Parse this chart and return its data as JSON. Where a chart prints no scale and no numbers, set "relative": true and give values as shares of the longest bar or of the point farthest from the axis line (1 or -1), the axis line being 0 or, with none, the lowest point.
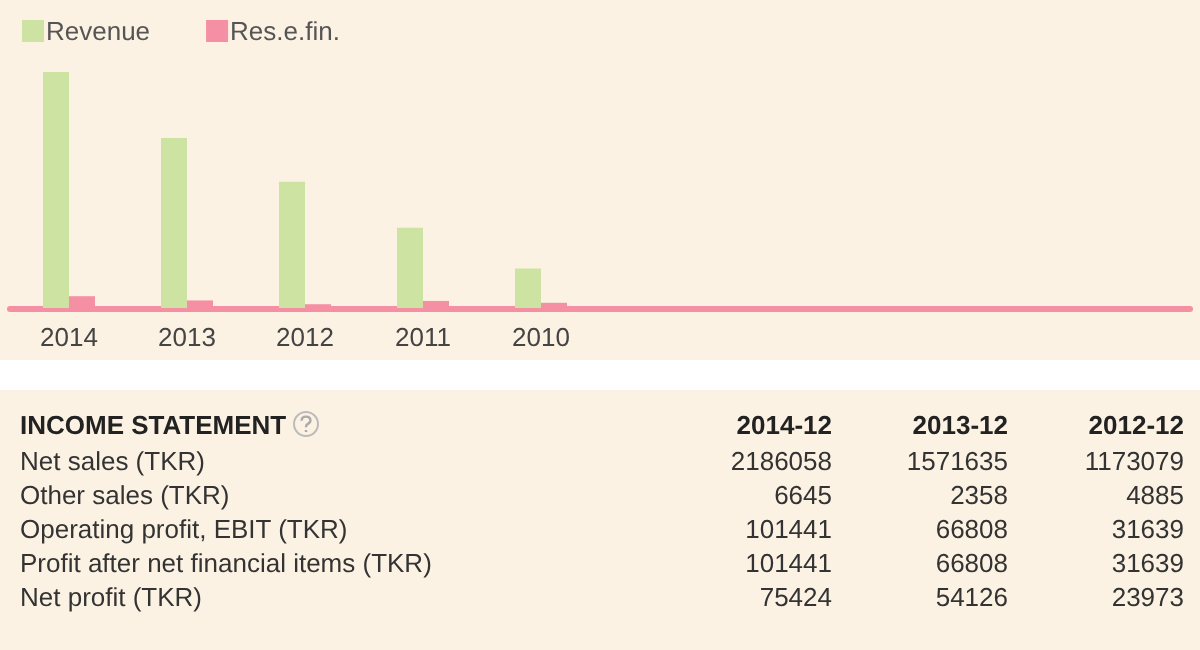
{
  "chart_data": [
    {
      "type": "bar",
      "relative": true,
      "legend": "top left",
      "categories": [
        "2014",
        "2013",
        "2012",
        "2011",
        "2010",
        null,
        null,
        null,
        null,
        null
      ],
      "series": [
        {
          "name": "Revenue",
          "color": "#cce3a1",
          "values": [
            1,
            0.72,
            0.535,
            0.34,
            0.167,
            null,
            null,
            null,
            null,
            null
          ]
        },
        {
          "name": "Res.e.fin.",
          "color": "#f58fa4",
          "values": [
            0.05,
            0.032,
            0.016,
            0.03,
            0.022,
            null,
            null,
            null,
            null,
            null
          ]
        }
      ]
    },
    {
      "type": "other",
      "title": "INCOME STATEMENT",
      "categories": [
        "2014-12",
        "2013-12",
        "2012-12"
      ],
      "y_categories": [
        "Net sales (TKR)",
        "Other sales (TKR)",
        "Operating profit, EBIT (TKR)",
        "Profit after net financial items (TKR)",
        "Net profit (TKR)"
      ],
      "cell_labels": [
        [
          "2186058",
          "1571635",
          "1173079"
        ],
        [
          "6645",
          "2358",
          "4885"
        ],
        [
          "101441",
          "66808",
          "31639"
        ],
        [
          "101441",
          "66808",
          "31639"
        ],
        [
          "75424",
          "54126",
          "23973"
        ]
      ]
    }
  ]
}
